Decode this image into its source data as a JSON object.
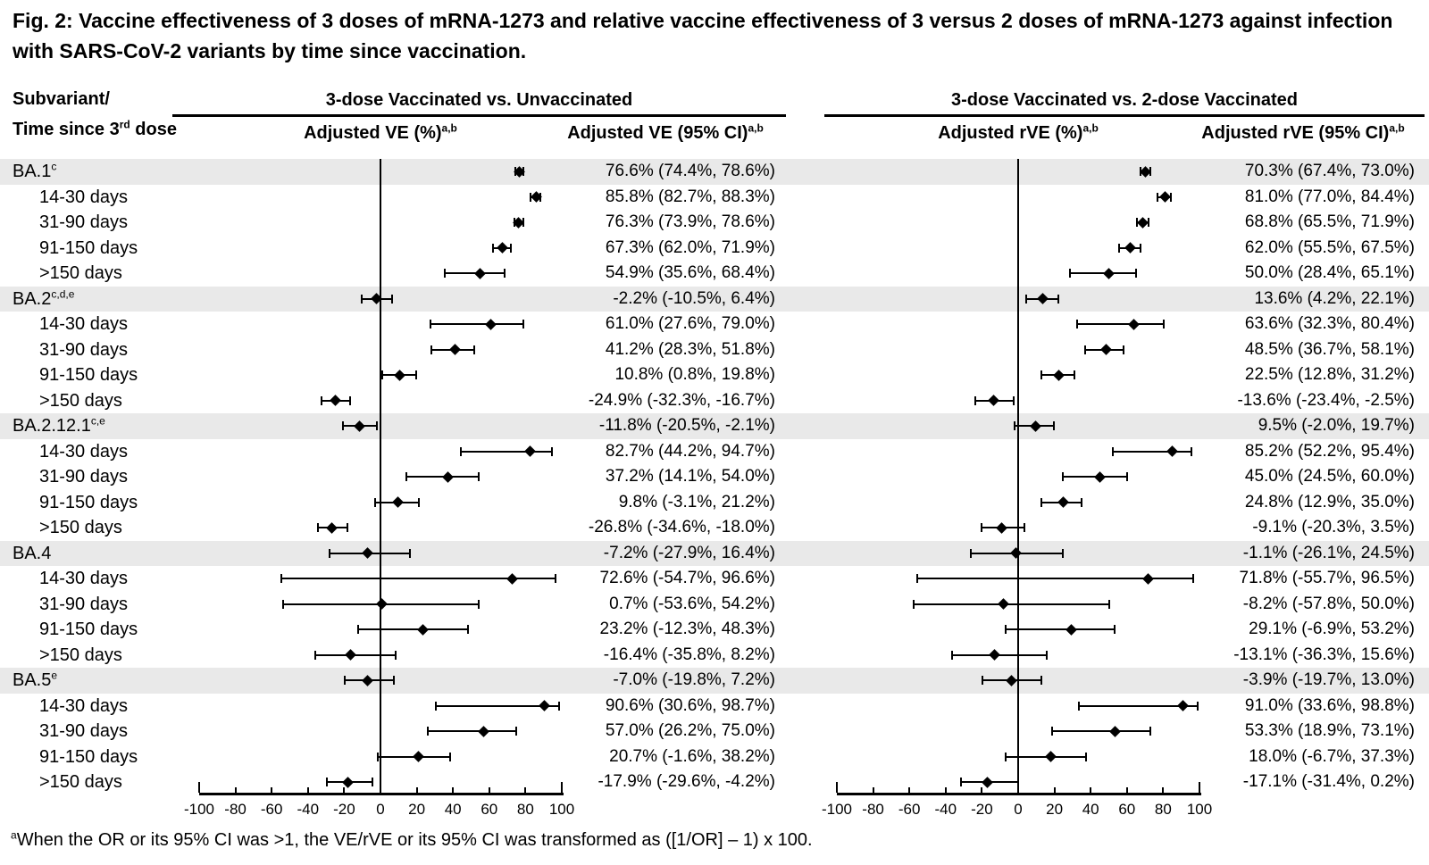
{
  "title": "Fig. 2: Vaccine effectiveness of 3 doses of mRNA-1273 and relative vaccine effectiveness of 3 versus 2 doses of mRNA-1273 against infection with SARS-CoV-2 variants by time since vaccination.",
  "row_header": {
    "line1": "Subvariant/",
    "line2_pre": "Time since 3",
    "line2_sup": "rd",
    "line2_post": " dose"
  },
  "panels": [
    {
      "group": "3-dose Vaccinated vs. Unvaccinated",
      "col1": "Adjusted VE (%)",
      "col1_sup": "a,b",
      "col2": "Adjusted VE (95% CI)",
      "col2_sup": "a,b"
    },
    {
      "group": "3-dose Vaccinated vs. 2-dose Vaccinated",
      "col1": "Adjusted rVE (%)",
      "col1_sup": "a,b",
      "col2": "Adjusted rVE (95% CI)",
      "col2_sup": "a,b"
    }
  ],
  "footnote": {
    "sup": "a",
    "text": "When the OR or its 95% CI was >1, the VE/rVE or its 95% CI was transformed as ([1/OR] – 1) x 100."
  },
  "colors": {
    "band": "#e9e9e9",
    "ink": "#000000"
  },
  "chart_data": {
    "type": "forest",
    "title": "Vaccine effectiveness of 3 doses of mRNA-1273 and relative vaccine effectiveness of 3 versus 2 doses of mRNA-1273 against infection with SARS-CoV-2 variants by time since vaccination",
    "axis": {
      "xlim": [
        -100,
        100
      ],
      "ticks": [
        -100,
        -80,
        -60,
        -40,
        -20,
        0,
        20,
        40,
        60,
        80,
        100
      ],
      "grid": false,
      "zero_reference_line": true
    },
    "panel_names": [
      "3-dose Vaccinated vs. Unvaccinated",
      "3-dose Vaccinated vs. 2-dose Vaccinated"
    ],
    "rows": [
      {
        "label": "BA.1",
        "sup": "c",
        "indent": false,
        "shaded": true,
        "ve": {
          "est": 76.6,
          "lo": 74.4,
          "hi": 78.6,
          "text": "76.6% (74.4%, 78.6%)"
        },
        "rve": {
          "est": 70.3,
          "lo": 67.4,
          "hi": 73.0,
          "text": "70.3% (67.4%, 73.0%)"
        }
      },
      {
        "label": "14-30 days",
        "sup": "",
        "indent": true,
        "shaded": false,
        "ve": {
          "est": 85.8,
          "lo": 82.7,
          "hi": 88.3,
          "text": "85.8% (82.7%, 88.3%)"
        },
        "rve": {
          "est": 81.0,
          "lo": 77.0,
          "hi": 84.4,
          "text": "81.0% (77.0%, 84.4%)"
        }
      },
      {
        "label": "31-90 days",
        "sup": "",
        "indent": true,
        "shaded": false,
        "ve": {
          "est": 76.3,
          "lo": 73.9,
          "hi": 78.6,
          "text": "76.3% (73.9%, 78.6%)"
        },
        "rve": {
          "est": 68.8,
          "lo": 65.5,
          "hi": 71.9,
          "text": "68.8% (65.5%, 71.9%)"
        }
      },
      {
        "label": "91-150 days",
        "sup": "",
        "indent": true,
        "shaded": false,
        "ve": {
          "est": 67.3,
          "lo": 62.0,
          "hi": 71.9,
          "text": "67.3% (62.0%, 71.9%)"
        },
        "rve": {
          "est": 62.0,
          "lo": 55.5,
          "hi": 67.5,
          "text": "62.0% (55.5%, 67.5%)"
        }
      },
      {
        "label": ">150 days",
        "sup": "",
        "indent": true,
        "shaded": false,
        "ve": {
          "est": 54.9,
          "lo": 35.6,
          "hi": 68.4,
          "text": "54.9% (35.6%, 68.4%)"
        },
        "rve": {
          "est": 50.0,
          "lo": 28.4,
          "hi": 65.1,
          "text": "50.0% (28.4%, 65.1%)"
        }
      },
      {
        "label": "BA.2",
        "sup": "c,d,e",
        "indent": false,
        "shaded": true,
        "ve": {
          "est": -2.2,
          "lo": -10.5,
          "hi": 6.4,
          "text": "-2.2% (-10.5%, 6.4%)"
        },
        "rve": {
          "est": 13.6,
          "lo": 4.2,
          "hi": 22.1,
          "text": "13.6% (4.2%, 22.1%)"
        }
      },
      {
        "label": "14-30 days",
        "sup": "",
        "indent": true,
        "shaded": false,
        "ve": {
          "est": 61.0,
          "lo": 27.6,
          "hi": 79.0,
          "text": "61.0% (27.6%, 79.0%)"
        },
        "rve": {
          "est": 63.6,
          "lo": 32.3,
          "hi": 80.4,
          "text": "63.6% (32.3%, 80.4%)"
        }
      },
      {
        "label": "31-90 days",
        "sup": "",
        "indent": true,
        "shaded": false,
        "ve": {
          "est": 41.2,
          "lo": 28.3,
          "hi": 51.8,
          "text": "41.2% (28.3%, 51.8%)"
        },
        "rve": {
          "est": 48.5,
          "lo": 36.7,
          "hi": 58.1,
          "text": "48.5% (36.7%, 58.1%)"
        }
      },
      {
        "label": "91-150 days",
        "sup": "",
        "indent": true,
        "shaded": false,
        "ve": {
          "est": 10.8,
          "lo": 0.8,
          "hi": 19.8,
          "text": "10.8% (0.8%, 19.8%)"
        },
        "rve": {
          "est": 22.5,
          "lo": 12.8,
          "hi": 31.2,
          "text": "22.5% (12.8%, 31.2%)"
        }
      },
      {
        "label": ">150 days",
        "sup": "",
        "indent": true,
        "shaded": false,
        "ve": {
          "est": -24.9,
          "lo": -32.3,
          "hi": -16.7,
          "text": "-24.9% (-32.3%, -16.7%)"
        },
        "rve": {
          "est": -13.6,
          "lo": -23.4,
          "hi": -2.5,
          "text": "-13.6% (-23.4%, -2.5%)"
        }
      },
      {
        "label": "BA.2.12.1",
        "sup": "c,e",
        "indent": false,
        "shaded": true,
        "ve": {
          "est": -11.8,
          "lo": -20.5,
          "hi": -2.1,
          "text": "-11.8% (-20.5%, -2.1%)"
        },
        "rve": {
          "est": 9.5,
          "lo": -2.0,
          "hi": 19.7,
          "text": "9.5% (-2.0%, 19.7%)"
        }
      },
      {
        "label": "14-30 days",
        "sup": "",
        "indent": true,
        "shaded": false,
        "ve": {
          "est": 82.7,
          "lo": 44.2,
          "hi": 94.7,
          "text": "82.7% (44.2%, 94.7%)"
        },
        "rve": {
          "est": 85.2,
          "lo": 52.2,
          "hi": 95.4,
          "text": "85.2% (52.2%, 95.4%)"
        }
      },
      {
        "label": "31-90 days",
        "sup": "",
        "indent": true,
        "shaded": false,
        "ve": {
          "est": 37.2,
          "lo": 14.1,
          "hi": 54.0,
          "text": "37.2% (14.1%, 54.0%)"
        },
        "rve": {
          "est": 45.0,
          "lo": 24.5,
          "hi": 60.0,
          "text": "45.0% (24.5%, 60.0%)"
        }
      },
      {
        "label": "91-150 days",
        "sup": "",
        "indent": true,
        "shaded": false,
        "ve": {
          "est": 9.8,
          "lo": -3.1,
          "hi": 21.2,
          "text": "9.8% (-3.1%, 21.2%)"
        },
        "rve": {
          "est": 24.8,
          "lo": 12.9,
          "hi": 35.0,
          "text": "24.8% (12.9%, 35.0%)"
        }
      },
      {
        "label": ">150 days",
        "sup": "",
        "indent": true,
        "shaded": false,
        "ve": {
          "est": -26.8,
          "lo": -34.6,
          "hi": -18.0,
          "text": "-26.8% (-34.6%, -18.0%)"
        },
        "rve": {
          "est": -9.1,
          "lo": -20.3,
          "hi": 3.5,
          "text": "-9.1% (-20.3%, 3.5%)"
        }
      },
      {
        "label": "BA.4",
        "sup": "",
        "indent": false,
        "shaded": true,
        "ve": {
          "est": -7.2,
          "lo": -27.9,
          "hi": 16.4,
          "text": "-7.2% (-27.9%, 16.4%)"
        },
        "rve": {
          "est": -1.1,
          "lo": -26.1,
          "hi": 24.5,
          "text": "-1.1% (-26.1%, 24.5%)"
        }
      },
      {
        "label": "14-30 days",
        "sup": "",
        "indent": true,
        "shaded": false,
        "ve": {
          "est": 72.6,
          "lo": -54.7,
          "hi": 96.6,
          "text": "72.6% (-54.7%, 96.6%)"
        },
        "rve": {
          "est": 71.8,
          "lo": -55.7,
          "hi": 96.5,
          "text": "71.8% (-55.7%, 96.5%)"
        }
      },
      {
        "label": "31-90 days",
        "sup": "",
        "indent": true,
        "shaded": false,
        "ve": {
          "est": 0.7,
          "lo": -53.6,
          "hi": 54.2,
          "text": "0.7% (-53.6%, 54.2%)"
        },
        "rve": {
          "est": -8.2,
          "lo": -57.8,
          "hi": 50.0,
          "text": "-8.2% (-57.8%, 50.0%)"
        }
      },
      {
        "label": "91-150 days",
        "sup": "",
        "indent": true,
        "shaded": false,
        "ve": {
          "est": 23.2,
          "lo": -12.3,
          "hi": 48.3,
          "text": "23.2% (-12.3%, 48.3%)"
        },
        "rve": {
          "est": 29.1,
          "lo": -6.9,
          "hi": 53.2,
          "text": "29.1% (-6.9%, 53.2%)"
        }
      },
      {
        "label": ">150 days",
        "sup": "",
        "indent": true,
        "shaded": false,
        "ve": {
          "est": -16.4,
          "lo": -35.8,
          "hi": 8.2,
          "text": "-16.4% (-35.8%, 8.2%)"
        },
        "rve": {
          "est": -13.1,
          "lo": -36.3,
          "hi": 15.6,
          "text": "-13.1% (-36.3%, 15.6%)"
        }
      },
      {
        "label": "BA.5",
        "sup": "e",
        "indent": false,
        "shaded": true,
        "ve": {
          "est": -7.0,
          "lo": -19.8,
          "hi": 7.2,
          "text": "-7.0% (-19.8%, 7.2%)"
        },
        "rve": {
          "est": -3.9,
          "lo": -19.7,
          "hi": 13.0,
          "text": "-3.9% (-19.7%, 13.0%)"
        }
      },
      {
        "label": "14-30 days",
        "sup": "",
        "indent": true,
        "shaded": false,
        "ve": {
          "est": 90.6,
          "lo": 30.6,
          "hi": 98.7,
          "text": "90.6% (30.6%, 98.7%)"
        },
        "rve": {
          "est": 91.0,
          "lo": 33.6,
          "hi": 98.8,
          "text": "91.0% (33.6%, 98.8%)"
        }
      },
      {
        "label": "31-90 days",
        "sup": "",
        "indent": true,
        "shaded": false,
        "ve": {
          "est": 57.0,
          "lo": 26.2,
          "hi": 75.0,
          "text": "57.0% (26.2%, 75.0%)"
        },
        "rve": {
          "est": 53.3,
          "lo": 18.9,
          "hi": 73.1,
          "text": "53.3% (18.9%, 73.1%)"
        }
      },
      {
        "label": "91-150 days",
        "sup": "",
        "indent": true,
        "shaded": false,
        "ve": {
          "est": 20.7,
          "lo": -1.6,
          "hi": 38.2,
          "text": "20.7% (-1.6%, 38.2%)"
        },
        "rve": {
          "est": 18.0,
          "lo": -6.7,
          "hi": 37.3,
          "text": "18.0% (-6.7%, 37.3%)"
        }
      },
      {
        "label": ">150 days",
        "sup": "",
        "indent": true,
        "shaded": false,
        "ve": {
          "est": -17.9,
          "lo": -29.6,
          "hi": -4.2,
          "text": "-17.9% (-29.6%, -4.2%)"
        },
        "rve": {
          "est": -17.1,
          "lo": -31.4,
          "hi": 0.2,
          "text": "-17.1% (-31.4%, 0.2%)"
        }
      }
    ]
  }
}
